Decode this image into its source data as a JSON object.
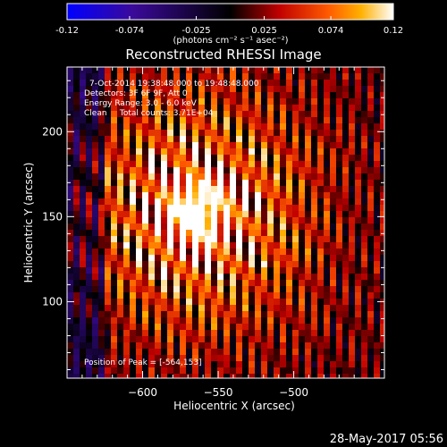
{
  "chart_data": {
    "type": "heatmap",
    "title": "Reconstructed RHESSI Image",
    "xlabel": "Heliocentric X (arcsec)",
    "ylabel": "Heliocentric Y (arcsec)",
    "xlim": [
      -650,
      -440
    ],
    "ylim": [
      55,
      238
    ],
    "x_ticks": [
      -600,
      -550,
      -500
    ],
    "y_ticks": [
      100,
      150,
      200
    ],
    "colorbar": {
      "ticks": [
        -0.12,
        -0.074,
        -0.025,
        0.025,
        0.074,
        0.12
      ],
      "tick_labels": [
        "-0.12",
        "-0.074",
        "-0.025",
        "0.025",
        "0.074",
        "0.12"
      ],
      "range": [
        -0.12,
        0.12
      ],
      "units_label": "(photons cm⁻² s⁻¹ asec⁻²)",
      "colormap": [
        "#0000ff",
        "#2a0a8a",
        "#000000",
        "#8a0000",
        "#ff3300",
        "#ffaa00",
        "#ffffff"
      ]
    },
    "annotations": {
      "time": "7-Oct-2014 19:38:48.000 to 19:48:48.000",
      "detectors": "Detectors: 3F 6F 9F, Att 0",
      "energy": "Energy Range: 3.0 - 6.0 keV",
      "clean": "Clean     Total counts: 3.71E+04",
      "peak": "Position of Peak = [-564,153]"
    },
    "peak": {
      "x": -564,
      "y": 153,
      "value": 0.12
    },
    "date_stamp": "28-May-2017 05:56"
  }
}
